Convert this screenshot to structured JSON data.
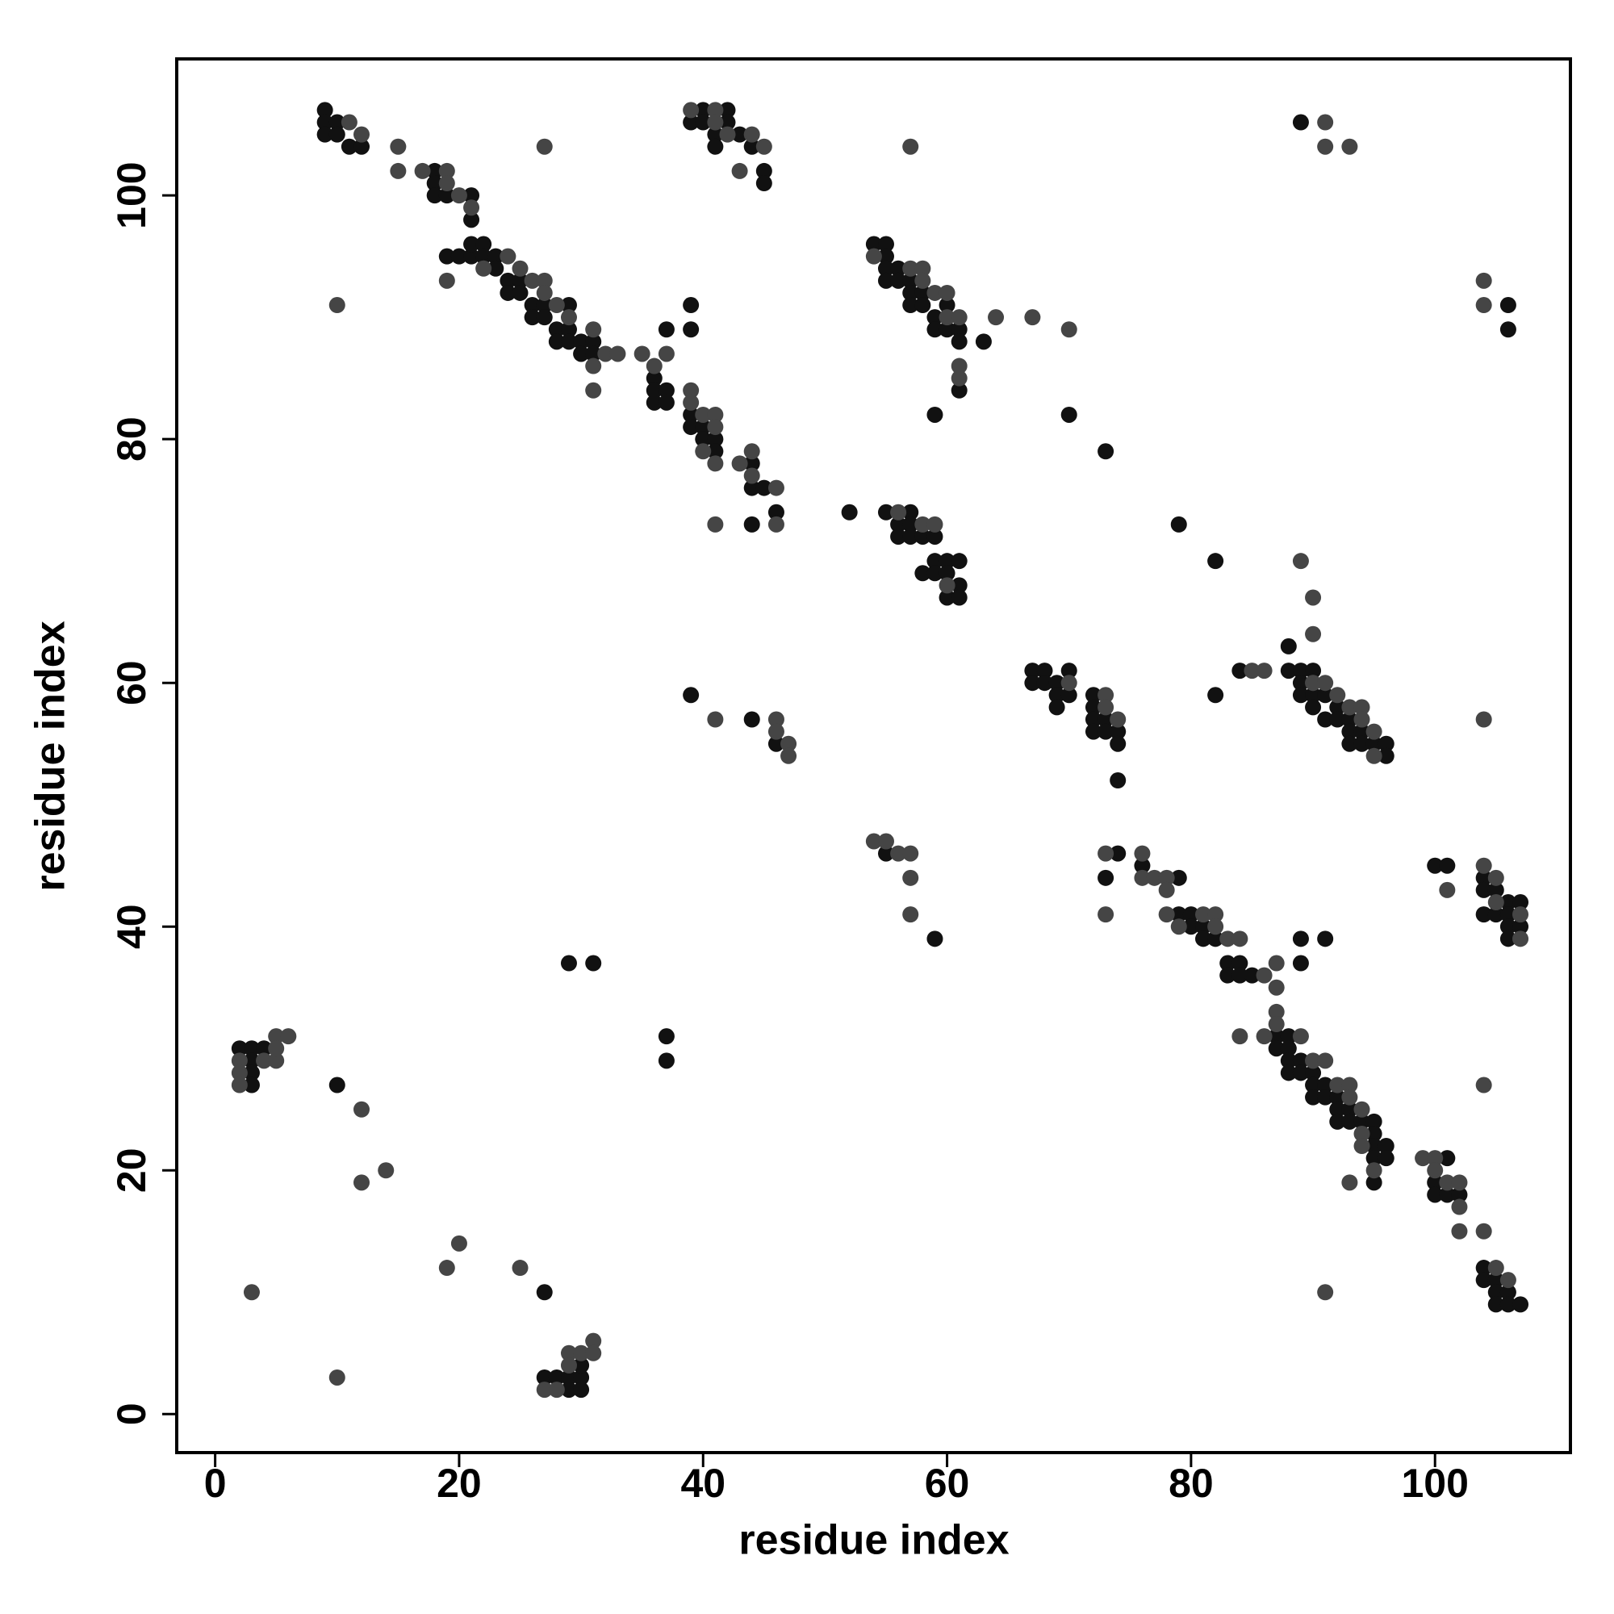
{
  "chart_data": {
    "type": "scatter",
    "x_label": "residue index",
    "y_label": "residue index",
    "xlim": [
      -3.15,
      111.1
    ],
    "ylim": [
      -3.16,
      111.2
    ],
    "xticks": [
      0,
      20,
      40,
      60,
      80,
      100
    ],
    "yticks": [
      0,
      20,
      40,
      60,
      80,
      100
    ],
    "grid": false,
    "series": [
      {
        "color": "#111111",
        "x": [
          9,
          9,
          10,
          9,
          10,
          11,
          12,
          18,
          18,
          18,
          19,
          21,
          21,
          19,
          20,
          21,
          21,
          22,
          22,
          23,
          23,
          24,
          24,
          25,
          25,
          26,
          26,
          27,
          27,
          28,
          28,
          29,
          29,
          29,
          30,
          30,
          31,
          31,
          36,
          36,
          36,
          37,
          37,
          37,
          39,
          39,
          39,
          39,
          40,
          40,
          41,
          41,
          44,
          44,
          45,
          46,
          44,
          40,
          42,
          39,
          40,
          41,
          42,
          43,
          41,
          44,
          45,
          45,
          54,
          55,
          55,
          55,
          56,
          55,
          56,
          57,
          57,
          57,
          58,
          58,
          59,
          59,
          60,
          60,
          61,
          61,
          61,
          63,
          59,
          70,
          73,
          52,
          55,
          56,
          57,
          56,
          57,
          57,
          58,
          59,
          58,
          59,
          59,
          60,
          60,
          61,
          61,
          60,
          61,
          79,
          82,
          88,
          67,
          68,
          67,
          68,
          69,
          69,
          70,
          70,
          69,
          72,
          72,
          72,
          73,
          72,
          73,
          74,
          74,
          74,
          84,
          88,
          89,
          90,
          89,
          89,
          90,
          91,
          90,
          92,
          91,
          92,
          93,
          93,
          94,
          93,
          94,
          95,
          96,
          96,
          82,
          39,
          44,
          46,
          55,
          59,
          74,
          73,
          76,
          79,
          79,
          80,
          80,
          81,
          81,
          82,
          83,
          83,
          84,
          84,
          85,
          89,
          91,
          89,
          87,
          88,
          87,
          88,
          88,
          89,
          88,
          89,
          90,
          90,
          91,
          90,
          91,
          92,
          92,
          93,
          92,
          93,
          94,
          95,
          95,
          95,
          96,
          95,
          96,
          95,
          101,
          100,
          100,
          101,
          102,
          104,
          104,
          105,
          105,
          106,
          105,
          106,
          107,
          100,
          101,
          104,
          104,
          105,
          106,
          107,
          104,
          105,
          106,
          106,
          107,
          106,
          89,
          106,
          106,
          2,
          3,
          4,
          3,
          3,
          3,
          10,
          27,
          29,
          31,
          37,
          37,
          27,
          28,
          29,
          30,
          29,
          30,
          30
        ],
        "values": [
          107,
          106,
          106,
          105,
          105,
          104,
          104,
          102,
          101,
          100,
          100,
          100,
          98,
          95,
          95,
          95,
          96,
          96,
          95,
          95,
          94,
          93,
          92,
          93,
          92,
          91,
          90,
          91,
          90,
          89,
          88,
          91,
          89,
          88,
          88,
          87,
          88,
          87,
          85,
          84,
          83,
          89,
          84,
          83,
          91,
          89,
          82,
          81,
          81,
          80,
          80,
          79,
          78,
          76,
          76,
          74,
          73,
          107,
          107,
          106,
          106,
          105,
          106,
          105,
          104,
          104,
          102,
          101,
          96,
          96,
          95,
          94,
          94,
          93,
          93,
          93,
          92,
          91,
          92,
          91,
          90,
          89,
          91,
          89,
          89,
          88,
          84,
          88,
          82,
          82,
          79,
          74,
          74,
          73,
          74,
          72,
          73,
          72,
          72,
          72,
          69,
          70,
          69,
          70,
          69,
          70,
          68,
          67,
          67,
          73,
          70,
          63,
          61,
          61,
          60,
          60,
          60,
          59,
          61,
          59,
          58,
          59,
          58,
          57,
          57,
          56,
          56,
          56,
          55,
          52,
          61,
          61,
          61,
          61,
          60,
          59,
          59,
          59,
          58,
          58,
          57,
          57,
          57,
          56,
          56,
          55,
          55,
          55,
          55,
          54,
          59,
          59,
          57,
          55,
          46,
          39,
          46,
          44,
          45,
          44,
          41,
          41,
          40,
          40,
          39,
          39,
          37,
          36,
          37,
          36,
          36,
          39,
          39,
          37,
          31,
          31,
          30,
          30,
          29,
          29,
          28,
          28,
          28,
          27,
          27,
          26,
          26,
          26,
          25,
          25,
          24,
          24,
          24,
          24,
          23,
          22,
          22,
          21,
          21,
          19,
          21,
          19,
          18,
          18,
          18,
          12,
          11,
          11,
          10,
          10,
          9,
          9,
          9,
          45,
          45,
          44,
          43,
          43,
          42,
          42,
          41,
          41,
          41,
          40,
          40,
          39,
          106,
          91,
          89,
          30,
          30,
          30,
          29,
          28,
          27,
          27,
          10,
          37,
          37,
          31,
          29,
          3,
          3,
          3,
          3,
          2,
          2,
          4
        ]
      },
      {
        "color": "#454545",
        "x": [
          11,
          12,
          15,
          15,
          17,
          19,
          19,
          20,
          21,
          22,
          24,
          25,
          26,
          27,
          27,
          28,
          29,
          31,
          31,
          31,
          32,
          33,
          19,
          10,
          27,
          35,
          36,
          37,
          39,
          39,
          40,
          40,
          41,
          41,
          41,
          41,
          43,
          44,
          44,
          46,
          46,
          39,
          41,
          41,
          42,
          44,
          45,
          43,
          57,
          54,
          57,
          58,
          58,
          59,
          60,
          60,
          61,
          61,
          61,
          64,
          67,
          70,
          56,
          58,
          59,
          60,
          89,
          90,
          90,
          70,
          73,
          73,
          74,
          85,
          86,
          90,
          91,
          92,
          93,
          94,
          94,
          95,
          95,
          104,
          41,
          46,
          46,
          47,
          47,
          54,
          55,
          56,
          57,
          57,
          57,
          73,
          73,
          76,
          76,
          77,
          78,
          78,
          78,
          81,
          82,
          79,
          82,
          83,
          84,
          86,
          87,
          87,
          84,
          87,
          87,
          86,
          89,
          90,
          91,
          92,
          93,
          93,
          94,
          94,
          94,
          95,
          93,
          99,
          100,
          100,
          101,
          102,
          102,
          102,
          104,
          105,
          106,
          91,
          104,
          101,
          104,
          105,
          105,
          107,
          107,
          91,
          91,
          93,
          104,
          104,
          2,
          4,
          5,
          2,
          2,
          5,
          6,
          5,
          3,
          12,
          12,
          14,
          19,
          20,
          25,
          10,
          27,
          28,
          29,
          30,
          31,
          31,
          29
        ],
        "values": [
          106,
          105,
          104,
          102,
          102,
          102,
          101,
          100,
          99,
          94,
          95,
          94,
          93,
          93,
          92,
          91,
          90,
          89,
          86,
          84,
          87,
          87,
          93,
          91,
          104,
          87,
          86,
          87,
          84,
          83,
          82,
          79,
          82,
          81,
          78,
          73,
          78,
          79,
          77,
          76,
          73,
          107,
          107,
          106,
          105,
          105,
          104,
          102,
          104,
          95,
          94,
          94,
          93,
          92,
          92,
          90,
          90,
          86,
          85,
          90,
          90,
          89,
          74,
          73,
          73,
          68,
          70,
          67,
          64,
          60,
          59,
          58,
          57,
          61,
          61,
          60,
          60,
          59,
          58,
          58,
          57,
          56,
          54,
          57,
          57,
          57,
          56,
          55,
          54,
          47,
          47,
          46,
          46,
          44,
          41,
          46,
          41,
          46,
          44,
          44,
          44,
          43,
          41,
          41,
          41,
          40,
          40,
          39,
          39,
          36,
          37,
          35,
          31,
          33,
          32,
          31,
          31,
          29,
          29,
          27,
          27,
          26,
          25,
          23,
          22,
          20,
          19,
          21,
          21,
          20,
          19,
          19,
          17,
          15,
          15,
          12,
          11,
          10,
          27,
          43,
          45,
          44,
          42,
          41,
          39,
          106,
          104,
          104,
          93,
          91,
          29,
          29,
          29,
          28,
          27,
          31,
          31,
          30,
          10,
          25,
          19,
          20,
          12,
          14,
          12,
          3,
          2,
          2,
          5,
          5,
          6,
          5,
          4
        ]
      }
    ]
  }
}
